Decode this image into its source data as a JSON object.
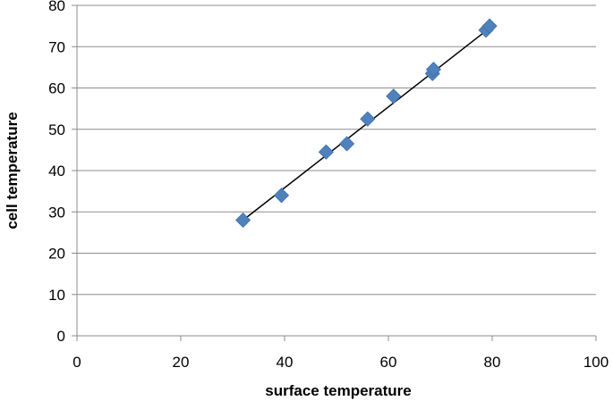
{
  "chart_data": {
    "type": "scatter",
    "title": "",
    "xlabel": "surface temperature",
    "ylabel": "cell temperature",
    "xlim": [
      0,
      100
    ],
    "ylim": [
      0,
      80
    ],
    "xticks": [
      0,
      20,
      40,
      60,
      80,
      100
    ],
    "yticks": [
      0,
      10,
      20,
      30,
      40,
      50,
      60,
      70,
      80
    ],
    "grid": "horizontal",
    "legend": "none",
    "series": [
      {
        "marker": "diamond",
        "color": "#4F81BD",
        "points": [
          {
            "x": 32,
            "y": 28
          },
          {
            "x": 39.4,
            "y": 34
          },
          {
            "x": 48,
            "y": 44.5
          },
          {
            "x": 52,
            "y": 46.5
          },
          {
            "x": 56,
            "y": 52.5
          },
          {
            "x": 61,
            "y": 58
          },
          {
            "x": 68.5,
            "y": 63.5
          },
          {
            "x": 68.7,
            "y": 64.5
          },
          {
            "x": 78.8,
            "y": 74
          },
          {
            "x": 79.5,
            "y": 75
          }
        ]
      }
    ],
    "trendline": {
      "type": "linear",
      "color": "#000000",
      "from": {
        "x": 32,
        "y": 28
      },
      "to": {
        "x": 79.5,
        "y": 74.5
      }
    }
  }
}
